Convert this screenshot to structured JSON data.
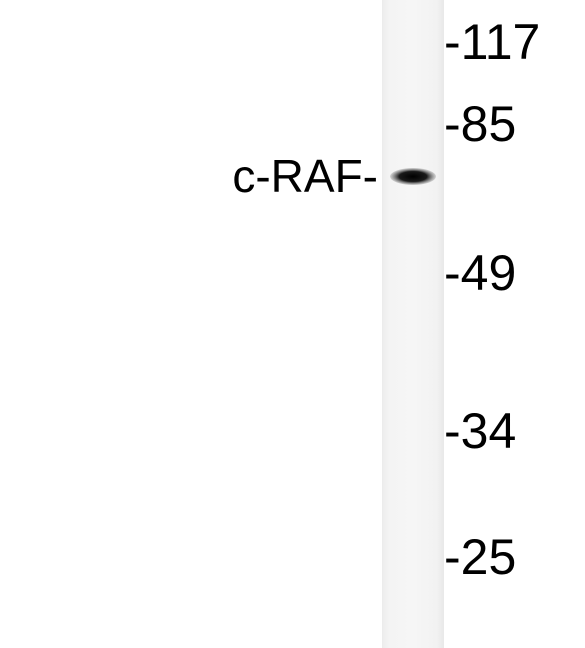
{
  "blot": {
    "protein_label": "c-RAF-",
    "markers": [
      "-117",
      "-85",
      "-49",
      "-34",
      "-25"
    ],
    "band_color": "#111111",
    "lane_color": "#f4f4f4"
  }
}
